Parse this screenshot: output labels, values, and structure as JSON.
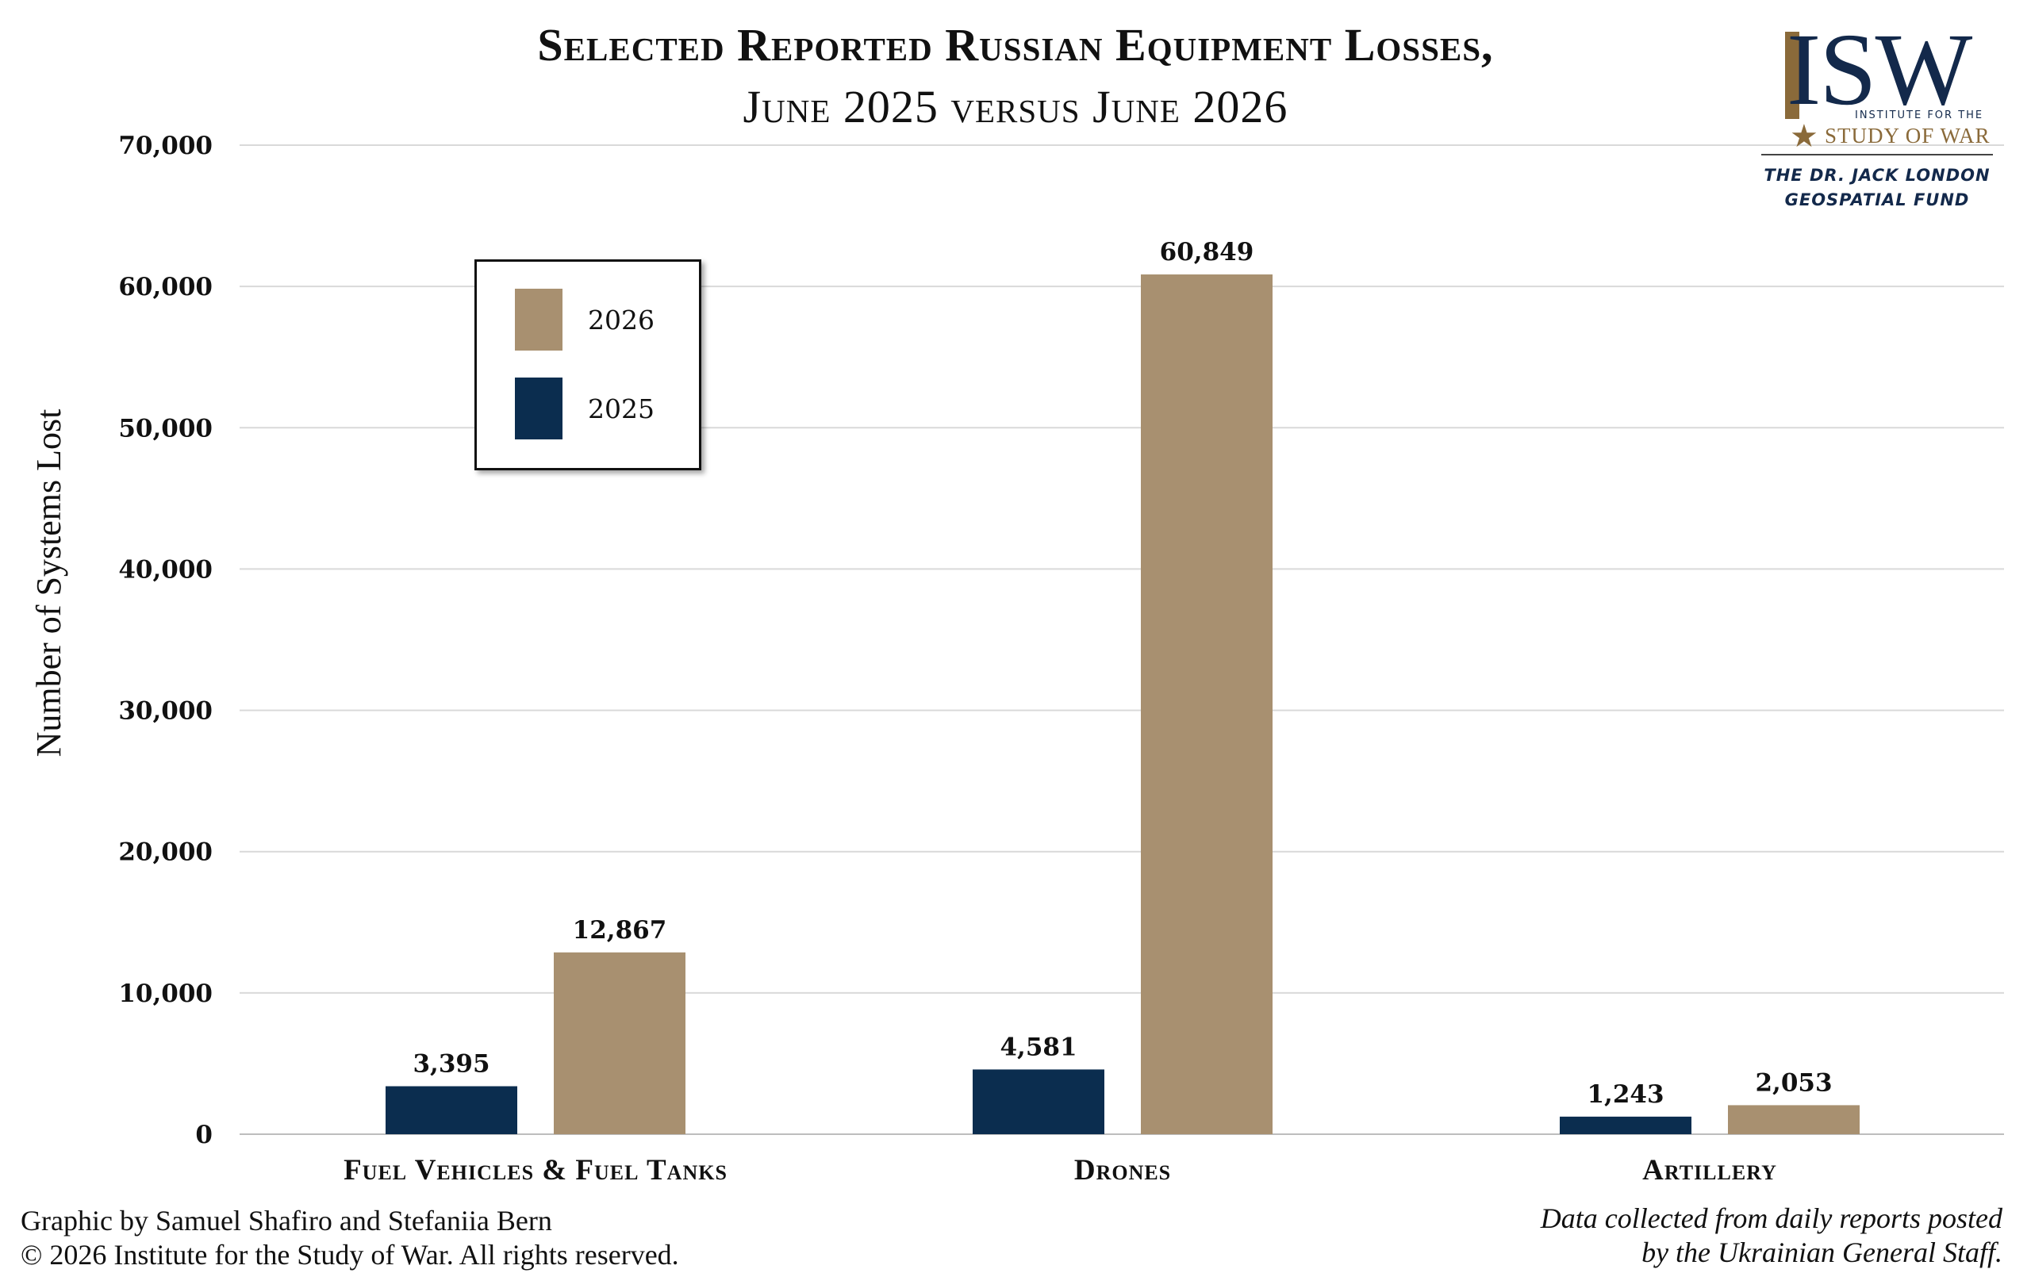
{
  "title": {
    "line1": "Selected Reported Russian Equipment Losses,",
    "line2": "June 2025 versus June 2026"
  },
  "logo": {
    "wordmark": "ISW",
    "sub1": "INSTITUTE FOR THE",
    "sub2": "STUDY OF WAR",
    "fund_line1": "THE DR. JACK LONDON",
    "fund_line2": "GEOSPATIAL FUND"
  },
  "footer": {
    "credit_line1": "Graphic by Samuel Shafiro and Stefaniia Bern",
    "credit_line2": "© 2026 Institute for the Study of War. All rights reserved.",
    "source_line1": "Data collected from daily reports posted",
    "source_line2": "by the Ukrainian General Staff."
  },
  "chart_data": {
    "type": "bar",
    "title": "Selected Reported Russian Equipment Losses, June 2025 versus June 2026",
    "ylabel": "Number of Systems Lost",
    "xlabel": "",
    "ylim": [
      0,
      70000
    ],
    "yticks": [
      0,
      10000,
      20000,
      30000,
      40000,
      50000,
      60000,
      70000
    ],
    "ytick_labels": [
      "0",
      "10,000",
      "20,000",
      "30,000",
      "40,000",
      "50,000",
      "60,000",
      "70,000"
    ],
    "grid": true,
    "legend_position": "upper-left",
    "categories": [
      "Fuel Vehicles & Fuel Tanks",
      "Drones",
      "Artillery"
    ],
    "series": [
      {
        "name": "2025",
        "color": "#0b2d4f",
        "values": [
          3395,
          4581,
          1243
        ],
        "labels": [
          "3,395",
          "4,581",
          "1,243"
        ]
      },
      {
        "name": "2026",
        "color": "#a89070",
        "values": [
          12867,
          60849,
          2053
        ],
        "labels": [
          "12,867",
          "60,849",
          "2,053"
        ]
      }
    ],
    "legend_order": [
      "2026",
      "2025"
    ]
  }
}
